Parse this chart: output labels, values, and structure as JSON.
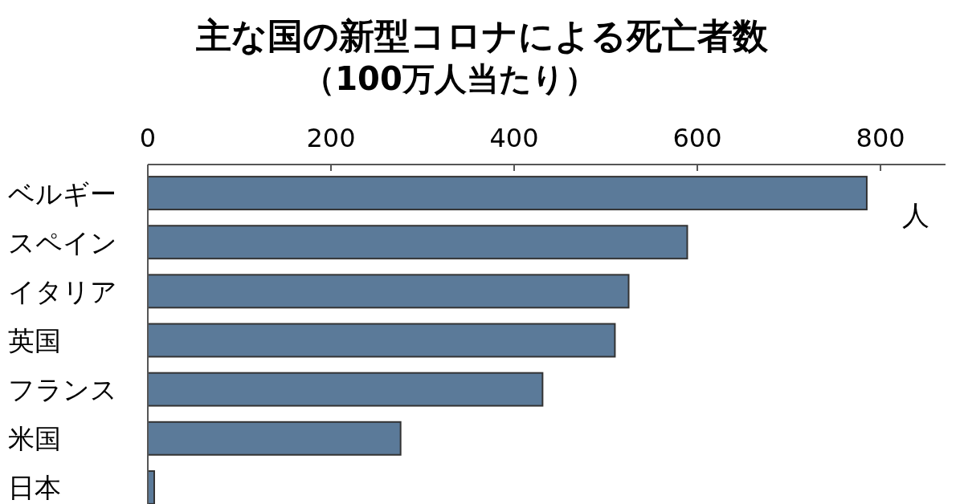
{
  "chart_data": {
    "type": "bar",
    "orientation": "horizontal",
    "title": "主な国の新型コロナによる死亡者数",
    "subtitle": "（100万人当たり）",
    "xlabel": "人",
    "categories": [
      "ベルギー",
      "スペイン",
      "イタリア",
      "英国",
      "フランス",
      "米国",
      "日本"
    ],
    "values": [
      785,
      589,
      525,
      510,
      431,
      276,
      7
    ],
    "color": "#5b7a99",
    "xlim": [
      0,
      871
    ],
    "xticks": [
      0,
      200,
      400,
      600,
      800
    ],
    "grid": false
  }
}
